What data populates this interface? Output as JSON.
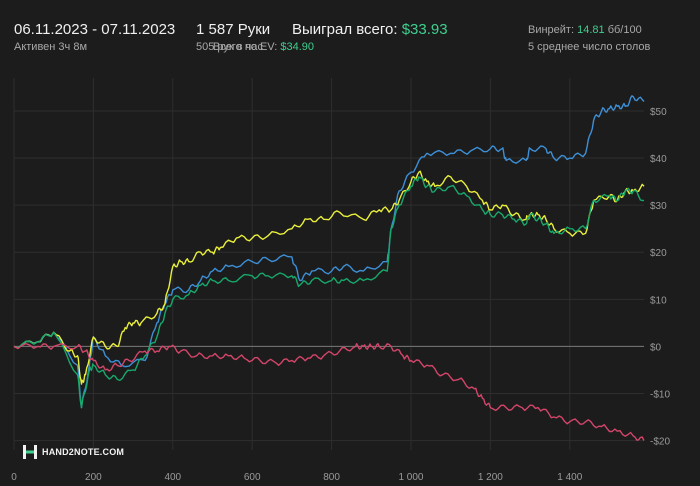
{
  "header": {
    "date_range": "06.11.2023 - 07.11.2023",
    "active": "Активен 3ч 8м",
    "hands": "1 587 Руки",
    "hands_per_hour": "505 рук в час",
    "won_label": "Выиграл всего:",
    "won_value": "$33.93",
    "ev_label": "Всего по EV:",
    "ev_value": "$34.90",
    "winrate_label": "Винрейт:",
    "winrate_value": "14.81",
    "winrate_unit": "бб/100",
    "tables": "5 среднее число столов"
  },
  "logo": {
    "text": "HAND2NOTE.COM",
    "icon": "h2n-logo-icon"
  },
  "colors": {
    "background": "#1c1c1c",
    "accent_green": "#3fcf8e",
    "blue": "#3d8fd6",
    "yellow": "#e9ef3b",
    "green": "#17a86b",
    "red": "#d4456a"
  },
  "chart_data": {
    "type": "line",
    "xlim": [
      0,
      1587
    ],
    "ylim": [
      -22,
      57
    ],
    "x_ticks": [
      0,
      200,
      400,
      600,
      800,
      1000,
      1200,
      1400
    ],
    "x_tick_labels": [
      "0",
      "200",
      "400",
      "600",
      "800",
      "1 000",
      "1 200",
      "1 400"
    ],
    "y_ticks": [
      50,
      40,
      30,
      20,
      10,
      0,
      -10,
      -20
    ],
    "y_tick_labels": [
      "$50",
      "$40",
      "$30",
      "$20",
      "$10",
      "$0",
      "-$10",
      "-$20"
    ],
    "grid": true,
    "series": [
      {
        "color": "#3d8fd6",
        "points": [
          [
            0,
            0
          ],
          [
            60,
            1
          ],
          [
            100,
            3
          ],
          [
            160,
            -4
          ],
          [
            170,
            -13
          ],
          [
            190,
            -4
          ],
          [
            200,
            2
          ],
          [
            230,
            -2
          ],
          [
            270,
            -4
          ],
          [
            330,
            -3
          ],
          [
            360,
            5
          ],
          [
            380,
            9
          ],
          [
            400,
            12
          ],
          [
            440,
            12
          ],
          [
            470,
            14
          ],
          [
            500,
            16
          ],
          [
            540,
            17
          ],
          [
            600,
            18
          ],
          [
            640,
            18.5
          ],
          [
            700,
            19
          ],
          [
            720,
            14
          ],
          [
            750,
            16
          ],
          [
            800,
            16
          ],
          [
            830,
            17
          ],
          [
            880,
            16
          ],
          [
            940,
            18
          ],
          [
            950,
            25
          ],
          [
            970,
            33
          ],
          [
            1000,
            37
          ],
          [
            1040,
            41
          ],
          [
            1100,
            41
          ],
          [
            1150,
            41.5
          ],
          [
            1200,
            42
          ],
          [
            1230,
            42
          ],
          [
            1240,
            39.5
          ],
          [
            1290,
            39.5
          ],
          [
            1300,
            42
          ],
          [
            1340,
            42
          ],
          [
            1360,
            40
          ],
          [
            1400,
            40
          ],
          [
            1440,
            41
          ],
          [
            1460,
            48
          ],
          [
            1480,
            50
          ],
          [
            1500,
            50.5
          ],
          [
            1520,
            51
          ],
          [
            1540,
            51
          ],
          [
            1560,
            53
          ],
          [
            1587,
            52
          ]
        ]
      },
      {
        "color": "#e9ef3b",
        "points": [
          [
            0,
            0
          ],
          [
            60,
            1
          ],
          [
            100,
            3
          ],
          [
            140,
            -1
          ],
          [
            160,
            -2
          ],
          [
            170,
            -8
          ],
          [
            180,
            -6
          ],
          [
            200,
            2
          ],
          [
            230,
            0
          ],
          [
            260,
            0
          ],
          [
            280,
            4
          ],
          [
            300,
            5
          ],
          [
            320,
            5
          ],
          [
            360,
            7
          ],
          [
            380,
            9
          ],
          [
            400,
            17
          ],
          [
            420,
            18
          ],
          [
            440,
            18
          ],
          [
            470,
            20
          ],
          [
            500,
            20
          ],
          [
            520,
            21
          ],
          [
            560,
            23
          ],
          [
            600,
            23
          ],
          [
            640,
            23.5
          ],
          [
            700,
            25
          ],
          [
            740,
            27
          ],
          [
            780,
            27
          ],
          [
            820,
            28.5
          ],
          [
            880,
            27
          ],
          [
            920,
            29
          ],
          [
            950,
            29
          ],
          [
            970,
            31
          ],
          [
            1000,
            35
          ],
          [
            1020,
            37
          ],
          [
            1040,
            35
          ],
          [
            1060,
            34
          ],
          [
            1100,
            36
          ],
          [
            1140,
            34
          ],
          [
            1180,
            31
          ],
          [
            1200,
            29
          ],
          [
            1230,
            30
          ],
          [
            1260,
            28
          ],
          [
            1290,
            27
          ],
          [
            1300,
            28
          ],
          [
            1320,
            28
          ],
          [
            1340,
            27
          ],
          [
            1360,
            25
          ],
          [
            1400,
            24
          ],
          [
            1440,
            24
          ],
          [
            1460,
            31
          ],
          [
            1500,
            32
          ],
          [
            1520,
            31
          ],
          [
            1540,
            33
          ],
          [
            1560,
            33
          ],
          [
            1587,
            34
          ]
        ]
      },
      {
        "color": "#17a86b",
        "points": [
          [
            0,
            0
          ],
          [
            60,
            1
          ],
          [
            100,
            3
          ],
          [
            160,
            -6
          ],
          [
            170,
            -13
          ],
          [
            190,
            -5
          ],
          [
            200,
            -4
          ],
          [
            230,
            -6
          ],
          [
            260,
            -7
          ],
          [
            300,
            -5
          ],
          [
            330,
            -2
          ],
          [
            360,
            2
          ],
          [
            380,
            7
          ],
          [
            400,
            10
          ],
          [
            440,
            11
          ],
          [
            470,
            13
          ],
          [
            500,
            14
          ],
          [
            540,
            14
          ],
          [
            600,
            15
          ],
          [
            640,
            15
          ],
          [
            700,
            15
          ],
          [
            720,
            13
          ],
          [
            750,
            14
          ],
          [
            800,
            14
          ],
          [
            830,
            14
          ],
          [
            880,
            14
          ],
          [
            940,
            16
          ],
          [
            950,
            25
          ],
          [
            970,
            30
          ],
          [
            1000,
            34
          ],
          [
            1020,
            36
          ],
          [
            1040,
            34
          ],
          [
            1060,
            33
          ],
          [
            1100,
            34
          ],
          [
            1140,
            32
          ],
          [
            1180,
            29
          ],
          [
            1200,
            28
          ],
          [
            1230,
            28
          ],
          [
            1260,
            27
          ],
          [
            1290,
            26
          ],
          [
            1300,
            28
          ],
          [
            1320,
            27
          ],
          [
            1340,
            26
          ],
          [
            1360,
            24
          ],
          [
            1400,
            25
          ],
          [
            1440,
            25
          ],
          [
            1460,
            31
          ],
          [
            1500,
            32
          ],
          [
            1520,
            31
          ],
          [
            1540,
            33
          ],
          [
            1560,
            33
          ],
          [
            1587,
            31
          ]
        ]
      },
      {
        "color": "#d4456a",
        "points": [
          [
            0,
            0
          ],
          [
            60,
            0
          ],
          [
            100,
            0
          ],
          [
            160,
            0
          ],
          [
            180,
            -1
          ],
          [
            200,
            -3
          ],
          [
            230,
            -5
          ],
          [
            260,
            -4
          ],
          [
            290,
            -3
          ],
          [
            330,
            -1
          ],
          [
            360,
            -1
          ],
          [
            390,
            0
          ],
          [
            420,
            -1
          ],
          [
            460,
            -2
          ],
          [
            500,
            -2
          ],
          [
            540,
            -2
          ],
          [
            580,
            -2.5
          ],
          [
            620,
            -3
          ],
          [
            660,
            -3.5
          ],
          [
            700,
            -3
          ],
          [
            740,
            -2.5
          ],
          [
            780,
            -2
          ],
          [
            820,
            -1
          ],
          [
            860,
            0
          ],
          [
            880,
            0
          ],
          [
            900,
            0
          ],
          [
            920,
            0
          ],
          [
            950,
            0
          ],
          [
            980,
            -2
          ],
          [
            1000,
            -3
          ],
          [
            1040,
            -4
          ],
          [
            1080,
            -6
          ],
          [
            1120,
            -7
          ],
          [
            1160,
            -9
          ],
          [
            1180,
            -11
          ],
          [
            1200,
            -13
          ],
          [
            1240,
            -13
          ],
          [
            1280,
            -13
          ],
          [
            1320,
            -13
          ],
          [
            1360,
            -15
          ],
          [
            1400,
            -16
          ],
          [
            1440,
            -16
          ],
          [
            1480,
            -17
          ],
          [
            1520,
            -18
          ],
          [
            1560,
            -19
          ],
          [
            1587,
            -20
          ]
        ]
      }
    ]
  }
}
